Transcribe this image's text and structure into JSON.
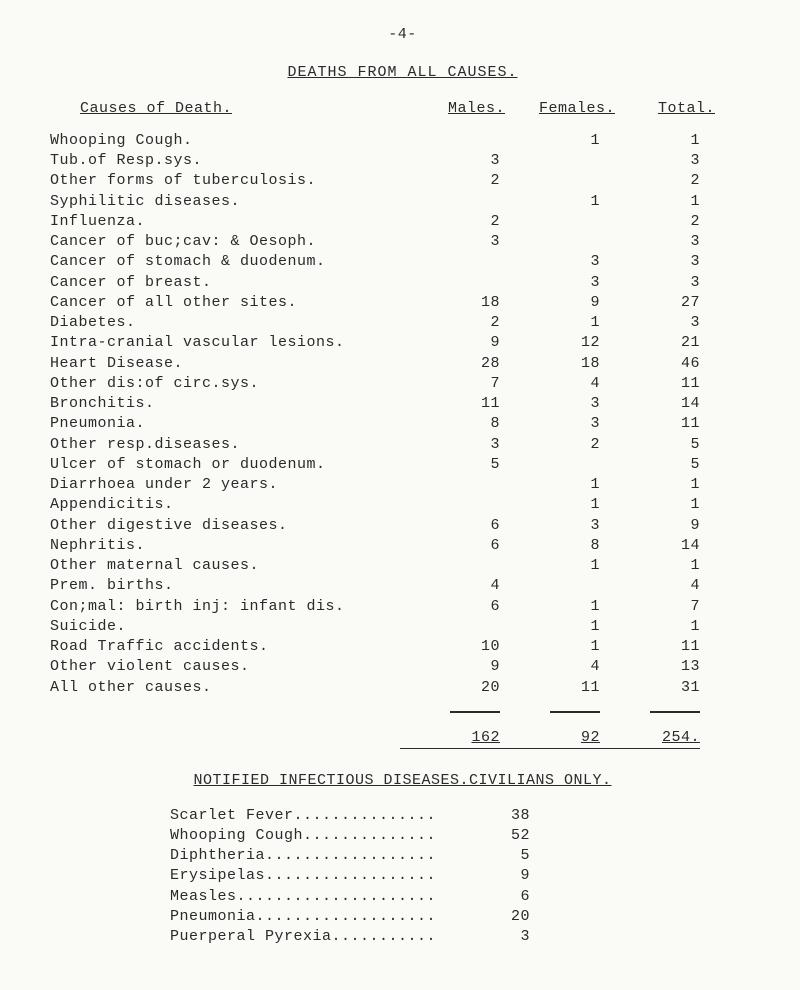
{
  "pageNumber": "-4-",
  "mainTitle": "DEATHS FROM ALL CAUSES.",
  "columnHeaders": {
    "cause": "Causes of Death.",
    "males": "Males.",
    "females": "Females.",
    "total": "Total."
  },
  "rows": [
    {
      "cause": "Whooping Cough.",
      "m": "",
      "f": "1",
      "t": "1"
    },
    {
      "cause": "Tub.of Resp.sys.",
      "m": "3",
      "f": "",
      "t": "3"
    },
    {
      "cause": "Other forms of tuberculosis.",
      "m": "2",
      "f": "",
      "t": "2"
    },
    {
      "cause": "Syphilitic diseases.",
      "m": "",
      "f": "1",
      "t": "1"
    },
    {
      "cause": "Influenza.",
      "m": "2",
      "f": "",
      "t": "2"
    },
    {
      "cause": "Cancer of buc;cav: & Oesoph.",
      "m": "3",
      "f": "",
      "t": "3"
    },
    {
      "cause": "Cancer of stomach & duodenum.",
      "m": "",
      "f": "3",
      "t": "3"
    },
    {
      "cause": "Cancer of breast.",
      "m": "",
      "f": "3",
      "t": "3"
    },
    {
      "cause": "Cancer of all other sites.",
      "m": "18",
      "f": "9",
      "t": "27"
    },
    {
      "cause": "Diabetes.",
      "m": "2",
      "f": "1",
      "t": "3"
    },
    {
      "cause": "Intra-cranial vascular lesions.",
      "m": "9",
      "f": "12",
      "t": "21"
    },
    {
      "cause": "Heart Disease.",
      "m": "28",
      "f": "18",
      "t": "46"
    },
    {
      "cause": "Other dis:of circ.sys.",
      "m": "7",
      "f": "4",
      "t": "11"
    },
    {
      "cause": "Bronchitis.",
      "m": "11",
      "f": "3",
      "t": "14"
    },
    {
      "cause": "Pneumonia.",
      "m": "8",
      "f": "3",
      "t": "11"
    },
    {
      "cause": "Other resp.diseases.",
      "m": "3",
      "f": "2",
      "t": "5"
    },
    {
      "cause": "Ulcer of stomach or duodenum.",
      "m": "5",
      "f": "",
      "t": "5"
    },
    {
      "cause": "Diarrhoea under 2 years.",
      "m": "",
      "f": "1",
      "t": "1"
    },
    {
      "cause": "Appendicitis.",
      "m": "",
      "f": "1",
      "t": "1"
    },
    {
      "cause": "Other digestive diseases.",
      "m": "6",
      "f": "3",
      "t": "9"
    },
    {
      "cause": "Nephritis.",
      "m": "6",
      "f": "8",
      "t": "14"
    },
    {
      "cause": "Other maternal causes.",
      "m": "",
      "f": "1",
      "t": "1"
    },
    {
      "cause": "Prem. births.",
      "m": "4",
      "f": "",
      "t": "4"
    },
    {
      "cause": "Con;mal: birth inj: infant dis.",
      "m": "6",
      "f": "1",
      "t": "7"
    },
    {
      "cause": "Suicide.",
      "m": "",
      "f": "1",
      "t": "1"
    },
    {
      "cause": "Road Traffic accidents.",
      "m": "10",
      "f": "1",
      "t": "11"
    },
    {
      "cause": "Other violent causes.",
      "m": "9",
      "f": "4",
      "t": "13"
    },
    {
      "cause": "All other causes.",
      "m": "20",
      "f": "11",
      "t": "31"
    }
  ],
  "totals": {
    "m": "162",
    "f": "92",
    "t": "254."
  },
  "section2Title": "NOTIFIED INFECTIOUS DISEASES.CIVILIANS ONLY.",
  "section2Rows": [
    {
      "name": "Scarlet Fever...............",
      "v": "38"
    },
    {
      "name": "Whooping Cough..............",
      "v": "52"
    },
    {
      "name": "Diphtheria..................",
      "v": "5"
    },
    {
      "name": "Erysipelas..................",
      "v": "9"
    },
    {
      "name": "Measles.....................",
      "v": "6"
    },
    {
      "name": "Pneumonia...................",
      "v": "20"
    },
    {
      "name": "Puerperal Pyrexia...........",
      "v": "3"
    }
  ]
}
